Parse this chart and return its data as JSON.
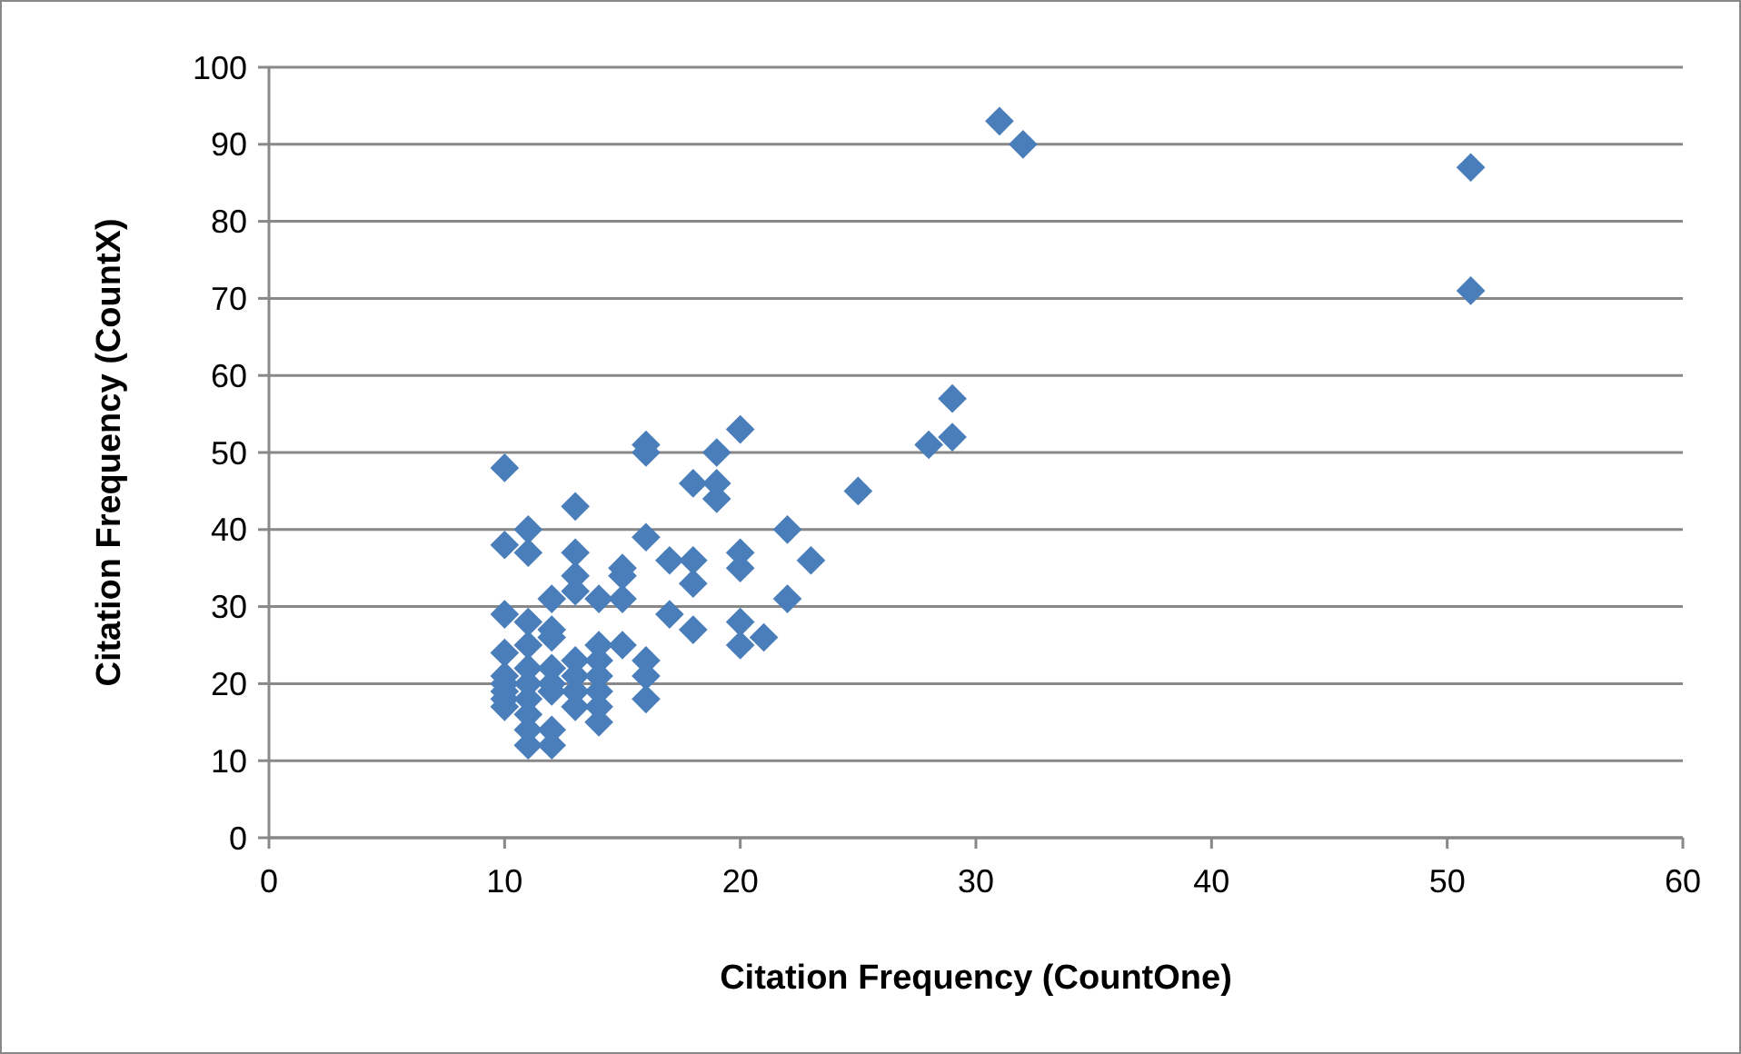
{
  "chart_data": {
    "type": "scatter",
    "xlabel": "Citation Frequency (CountOne)",
    "ylabel": "Citation Frequency (CountX)",
    "x": [
      10,
      10,
      11,
      11,
      10,
      10,
      10,
      10,
      10,
      10,
      10,
      11,
      11,
      11,
      11,
      11,
      11,
      11,
      11,
      12,
      12,
      12,
      12,
      12,
      12,
      12,
      12,
      13,
      13,
      13,
      13,
      13,
      13,
      13,
      13,
      14,
      14,
      14,
      14,
      14,
      14,
      14,
      15,
      15,
      15,
      15,
      16,
      16,
      16,
      16,
      16,
      16,
      17,
      17,
      18,
      18,
      18,
      18,
      19,
      19,
      19,
      20,
      20,
      20,
      20,
      20,
      21,
      22,
      22,
      23,
      25,
      28,
      29,
      29,
      31,
      32,
      51,
      51
    ],
    "values": [
      48,
      38,
      40,
      37,
      29,
      24,
      21,
      20,
      19,
      18,
      17,
      28,
      25,
      22,
      20,
      18,
      16,
      14,
      12,
      31,
      27,
      26,
      22,
      20,
      19,
      14,
      12,
      43,
      37,
      34,
      32,
      23,
      21,
      19,
      17,
      31,
      25,
      23,
      21,
      19,
      17,
      15,
      35,
      34,
      31,
      25,
      51,
      50,
      39,
      23,
      21,
      18,
      36,
      29,
      46,
      36,
      33,
      27,
      50,
      46,
      44,
      53,
      37,
      35,
      28,
      25,
      26,
      40,
      31,
      36,
      45,
      51,
      57,
      52,
      93,
      90,
      87,
      71
    ],
    "color": "#4a7ebb",
    "marker": "diamond",
    "grid": "y",
    "xlim": [
      0,
      60
    ],
    "xticks": [
      0,
      10,
      20,
      30,
      40,
      50,
      60
    ],
    "ylim": [
      0,
      100
    ],
    "yticks": [
      0,
      10,
      20,
      30,
      40,
      50,
      60,
      70,
      80,
      90,
      100
    ]
  }
}
